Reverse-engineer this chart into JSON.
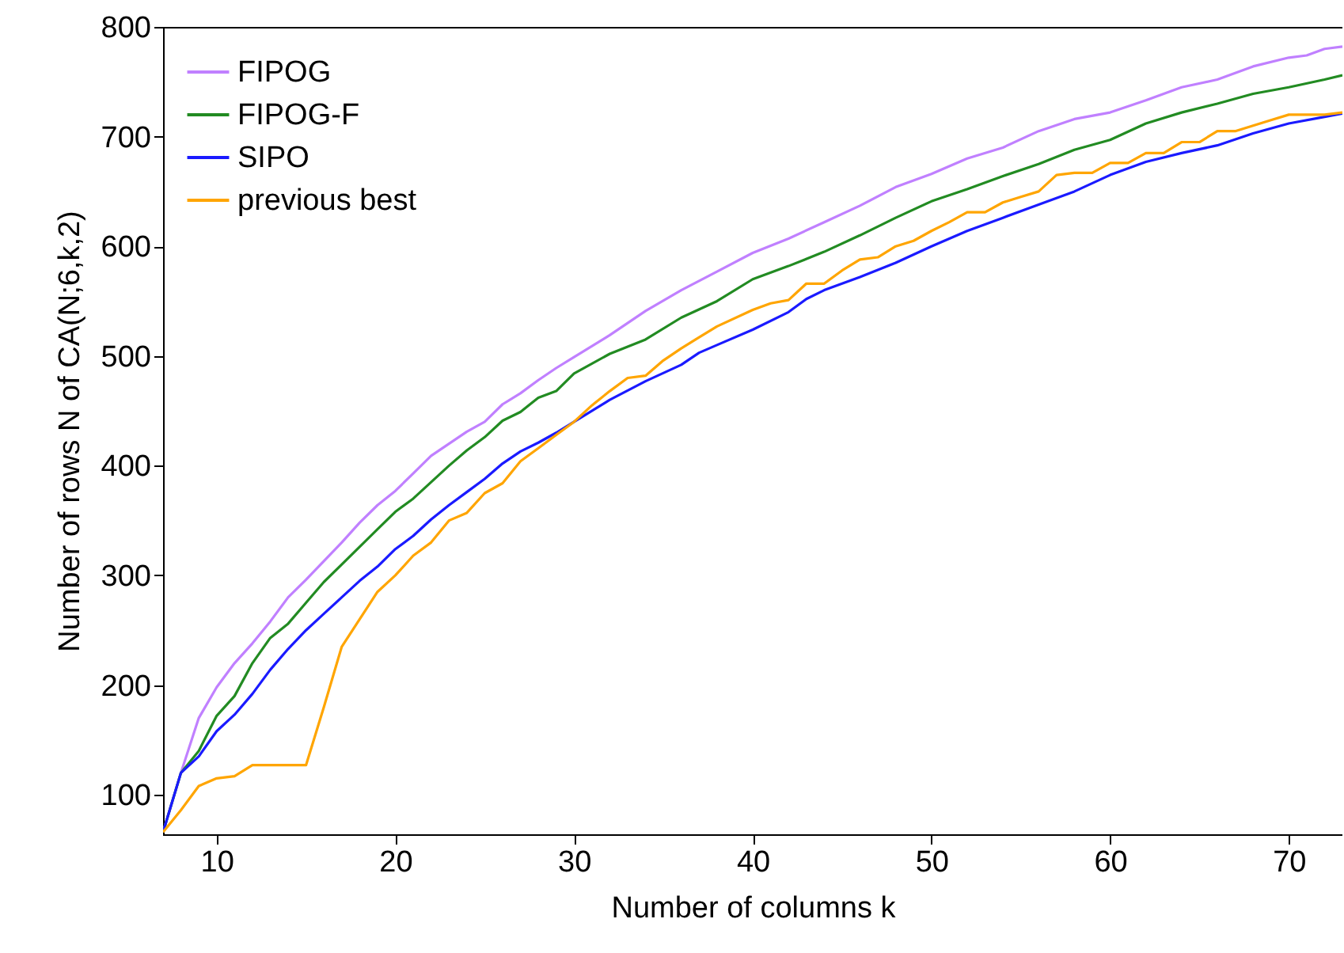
{
  "chart_data": {
    "type": "line",
    "xlabel": "Number of columns k",
    "ylabel": "Number of rows N of CA(N;6,k,2)",
    "xlim": [
      7,
      73
    ],
    "ylim": [
      64,
      800
    ],
    "xticks": [
      10,
      20,
      30,
      40,
      50,
      60,
      70
    ],
    "yticks": [
      100,
      200,
      300,
      400,
      500,
      600,
      700,
      800
    ],
    "grid": false,
    "legend": "top left",
    "marker": "none",
    "line_style": "solid",
    "series": [
      {
        "name": "FIPOG",
        "color": "#c080ff",
        "x": [
          7,
          8,
          9,
          10,
          11,
          12,
          13,
          14,
          15,
          16,
          17,
          18,
          19,
          20,
          21,
          22,
          23,
          24,
          25,
          26,
          27,
          28,
          29,
          30,
          32,
          34,
          36,
          38,
          40,
          42,
          44,
          46,
          48,
          50,
          52,
          54,
          56,
          58,
          60,
          62,
          64,
          66,
          68,
          70,
          71,
          72,
          73
        ],
        "values": [
          66,
          120,
          170,
          198,
          220,
          238,
          258,
          280,
          296,
          313,
          330,
          348,
          364,
          377,
          393,
          409,
          420,
          431,
          440,
          456,
          466,
          478,
          489,
          499,
          519,
          541,
          560,
          577,
          594,
          607,
          622,
          637,
          654,
          666,
          680,
          690,
          705,
          716,
          722,
          733,
          745,
          752,
          764,
          772,
          774,
          780,
          782
        ]
      },
      {
        "name": "FIPOG-F",
        "color": "#228b22",
        "x": [
          7,
          8,
          9,
          10,
          11,
          12,
          13,
          14,
          15,
          16,
          17,
          18,
          19,
          20,
          21,
          22,
          23,
          24,
          25,
          26,
          27,
          28,
          29,
          30,
          32,
          34,
          36,
          38,
          40,
          42,
          44,
          46,
          48,
          50,
          52,
          54,
          56,
          58,
          60,
          62,
          64,
          66,
          68,
          70,
          72,
          73
        ],
        "values": [
          66,
          120,
          140,
          172,
          190,
          220,
          243,
          256,
          275,
          294,
          310,
          326,
          342,
          358,
          370,
          385,
          400,
          414,
          426,
          441,
          449,
          462,
          468,
          484,
          502,
          515,
          535,
          550,
          570,
          582,
          595,
          610,
          626,
          641,
          652,
          664,
          675,
          688,
          697,
          712,
          722,
          730,
          739,
          745,
          752,
          756
        ]
      },
      {
        "name": "SIPO",
        "color": "#1a1aff",
        "x": [
          7,
          8,
          9,
          10,
          11,
          12,
          13,
          14,
          15,
          16,
          17,
          18,
          19,
          20,
          21,
          22,
          23,
          24,
          25,
          26,
          27,
          28,
          29,
          30,
          32,
          34,
          36,
          37,
          38,
          40,
          42,
          43,
          44,
          46,
          48,
          50,
          52,
          54,
          56,
          58,
          60,
          62,
          64,
          66,
          68,
          70,
          72,
          73
        ],
        "values": [
          66,
          120,
          135,
          158,
          173,
          192,
          214,
          233,
          250,
          265,
          280,
          295,
          308,
          324,
          336,
          351,
          364,
          376,
          388,
          402,
          413,
          421,
          430,
          440,
          460,
          477,
          492,
          503,
          510,
          524,
          540,
          552,
          560,
          572,
          585,
          600,
          614,
          626,
          638,
          650,
          665,
          677,
          685,
          692,
          703,
          712,
          718,
          721
        ]
      },
      {
        "name": "previous best",
        "color": "#ffa500",
        "x": [
          7,
          8,
          9,
          10,
          11,
          12,
          13,
          14,
          15,
          16,
          17,
          18,
          19,
          20,
          21,
          22,
          23,
          24,
          25,
          26,
          27,
          28,
          29,
          30,
          31,
          32,
          33,
          34,
          35,
          36,
          37,
          38,
          40,
          41,
          42,
          43,
          44,
          45,
          46,
          47,
          48,
          49,
          50,
          51,
          52,
          53,
          54,
          55,
          56,
          57,
          58,
          59,
          60,
          61,
          62,
          63,
          64,
          65,
          66,
          67,
          68,
          69,
          70,
          71,
          72,
          73
        ],
        "values": [
          66,
          86,
          108,
          115,
          117,
          127,
          127,
          127,
          127,
          180,
          235,
          260,
          285,
          300,
          318,
          330,
          350,
          357,
          375,
          384,
          404,
          416,
          428,
          440,
          455,
          468,
          480,
          482,
          496,
          507,
          517,
          527,
          542,
          548,
          551,
          566,
          566,
          578,
          588,
          590,
          600,
          605,
          614,
          622,
          631,
          631,
          640,
          645,
          650,
          665,
          667,
          667,
          676,
          676,
          685,
          685,
          695,
          695,
          705,
          705,
          710,
          715,
          720,
          720,
          720,
          722
        ]
      }
    ]
  }
}
